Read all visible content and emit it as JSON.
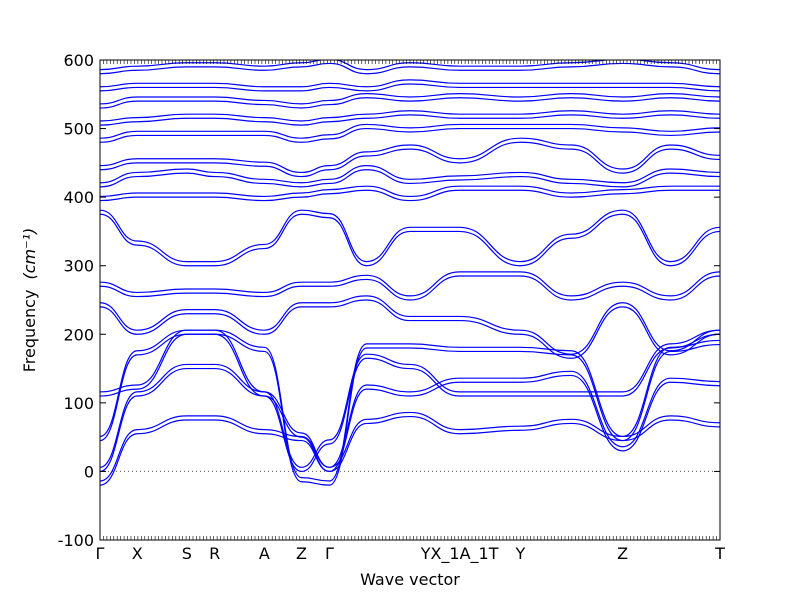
{
  "chart_data": {
    "type": "line",
    "xlabel": "Wave vector",
    "ylabel": "Frequency",
    "ylabel_unit": "(cm⁻¹)",
    "ylim": [
      -100,
      600
    ],
    "y_ticks": [
      -100,
      0,
      100,
      200,
      300,
      400,
      500,
      600
    ],
    "kpath": [
      {
        "label": "Γ",
        "pos": 0.0
      },
      {
        "label": "X",
        "pos": 0.06
      },
      {
        "label": "S",
        "pos": 0.14
      },
      {
        "label": "R",
        "pos": 0.185
      },
      {
        "label": "A",
        "pos": 0.265
      },
      {
        "label": "Z",
        "pos": 0.325
      },
      {
        "label": "Γ",
        "pos": 0.37
      },
      {
        "label": "YX_1A_1T",
        "pos": 0.58
      },
      {
        "label": "Y",
        "pos": 0.678
      },
      {
        "label": "Z",
        "pos": 0.843
      },
      {
        "label": "T",
        "pos": 1.0
      }
    ],
    "zero_line": true,
    "line_color": "#0000ff",
    "bands": [
      {
        "x": [
          0,
          0.06,
          0.14,
          0.185,
          0.265,
          0.325,
          0.37,
          0.43,
          0.5,
          0.58,
          0.678,
          0.76,
          0.843,
          0.92,
          1.0
        ],
        "y": [
          -20,
          55,
          75,
          75,
          55,
          45,
          0,
          70,
          80,
          55,
          60,
          70,
          45,
          75,
          65
        ]
      },
      {
        "x": [
          0,
          0.06,
          0.14,
          0.185,
          0.265,
          0.325,
          0.37,
          0.43,
          0.5,
          0.58,
          0.678,
          0.76,
          0.843,
          0.92,
          1.0
        ],
        "y": [
          0,
          110,
          150,
          150,
          110,
          50,
          0,
          120,
          110,
          130,
          130,
          140,
          30,
          130,
          125
        ]
      },
      {
        "x": [
          0,
          0.06,
          0.14,
          0.185,
          0.265,
          0.325,
          0.37,
          0.43,
          0.5,
          0.58,
          0.678,
          0.76,
          0.843,
          0.92,
          1.0
        ],
        "y": [
          45,
          170,
          200,
          200,
          175,
          -15,
          -20,
          180,
          180,
          175,
          175,
          170,
          45,
          175,
          185
        ]
      },
      {
        "x": [
          0,
          0.06,
          0.14,
          0.185,
          0.265,
          0.325,
          0.37,
          0.43,
          0.5,
          0.58,
          0.678,
          0.76,
          0.843,
          0.92,
          1.0
        ],
        "y": [
          110,
          120,
          200,
          200,
          110,
          0,
          40,
          165,
          150,
          110,
          110,
          110,
          110,
          180,
          200
        ]
      },
      {
        "x": [
          0,
          0.06,
          0.14,
          0.185,
          0.265,
          0.325,
          0.37,
          0.43,
          0.5,
          0.58,
          0.678,
          0.76,
          0.843,
          0.92,
          1.0
        ],
        "y": [
          240,
          200,
          230,
          230,
          200,
          240,
          240,
          250,
          220,
          220,
          200,
          165,
          240,
          170,
          200
        ]
      },
      {
        "x": [
          0,
          0.06,
          0.14,
          0.185,
          0.265,
          0.325,
          0.37,
          0.43,
          0.5,
          0.58,
          0.678,
          0.76,
          0.843,
          0.92,
          1.0
        ],
        "y": [
          270,
          255,
          260,
          260,
          255,
          270,
          270,
          280,
          250,
          285,
          285,
          250,
          270,
          250,
          285
        ]
      },
      {
        "x": [
          0,
          0.06,
          0.14,
          0.185,
          0.265,
          0.325,
          0.37,
          0.43,
          0.5,
          0.58,
          0.678,
          0.76,
          0.843,
          0.92,
          1.0
        ],
        "y": [
          375,
          330,
          300,
          300,
          325,
          375,
          370,
          300,
          350,
          350,
          300,
          340,
          375,
          300,
          350
        ]
      },
      {
        "x": [
          0,
          0.06,
          0.14,
          0.185,
          0.265,
          0.325,
          0.37,
          0.43,
          0.5,
          0.58,
          0.678,
          0.76,
          0.843,
          0.92,
          1.0
        ],
        "y": [
          395,
          400,
          400,
          400,
          395,
          400,
          405,
          410,
          395,
          410,
          410,
          400,
          405,
          410,
          410
        ]
      },
      {
        "x": [
          0,
          0.06,
          0.14,
          0.185,
          0.265,
          0.325,
          0.37,
          0.43,
          0.5,
          0.58,
          0.678,
          0.76,
          0.843,
          0.92,
          1.0
        ],
        "y": [
          415,
          430,
          435,
          430,
          420,
          415,
          420,
          440,
          420,
          425,
          430,
          420,
          415,
          435,
          430
        ]
      },
      {
        "x": [
          0,
          0.06,
          0.14,
          0.185,
          0.265,
          0.325,
          0.37,
          0.43,
          0.5,
          0.58,
          0.678,
          0.76,
          0.843,
          0.92,
          1.0
        ],
        "y": [
          440,
          450,
          450,
          450,
          445,
          430,
          440,
          460,
          470,
          450,
          480,
          470,
          435,
          470,
          455
        ]
      },
      {
        "x": [
          0,
          0.06,
          0.14,
          0.185,
          0.265,
          0.325,
          0.37,
          0.43,
          0.5,
          0.58,
          0.678,
          0.76,
          0.843,
          0.92,
          1.0
        ],
        "y": [
          480,
          490,
          490,
          490,
          490,
          480,
          485,
          500,
          495,
          500,
          500,
          500,
          495,
          490,
          495
        ]
      },
      {
        "x": [
          0,
          0.06,
          0.14,
          0.185,
          0.265,
          0.325,
          0.37,
          0.43,
          0.5,
          0.58,
          0.678,
          0.76,
          0.843,
          0.92,
          1.0
        ],
        "y": [
          505,
          510,
          515,
          515,
          510,
          505,
          510,
          515,
          520,
          515,
          515,
          520,
          515,
          520,
          515
        ]
      },
      {
        "x": [
          0,
          0.06,
          0.14,
          0.185,
          0.265,
          0.325,
          0.37,
          0.43,
          0.5,
          0.58,
          0.678,
          0.76,
          0.843,
          0.92,
          1.0
        ],
        "y": [
          530,
          540,
          540,
          540,
          535,
          530,
          535,
          545,
          540,
          545,
          540,
          545,
          540,
          545,
          540
        ]
      },
      {
        "x": [
          0,
          0.06,
          0.14,
          0.185,
          0.265,
          0.325,
          0.37,
          0.43,
          0.5,
          0.58,
          0.678,
          0.76,
          0.843,
          0.92,
          1.0
        ],
        "y": [
          555,
          560,
          560,
          560,
          555,
          555,
          560,
          555,
          565,
          560,
          560,
          560,
          560,
          560,
          555
        ]
      },
      {
        "x": [
          0,
          0.06,
          0.14,
          0.185,
          0.265,
          0.325,
          0.37,
          0.43,
          0.5,
          0.58,
          0.678,
          0.76,
          0.843,
          0.92,
          1.0
        ],
        "y": [
          580,
          585,
          590,
          590,
          585,
          590,
          595,
          580,
          590,
          585,
          585,
          590,
          595,
          590,
          580
        ]
      }
    ]
  }
}
